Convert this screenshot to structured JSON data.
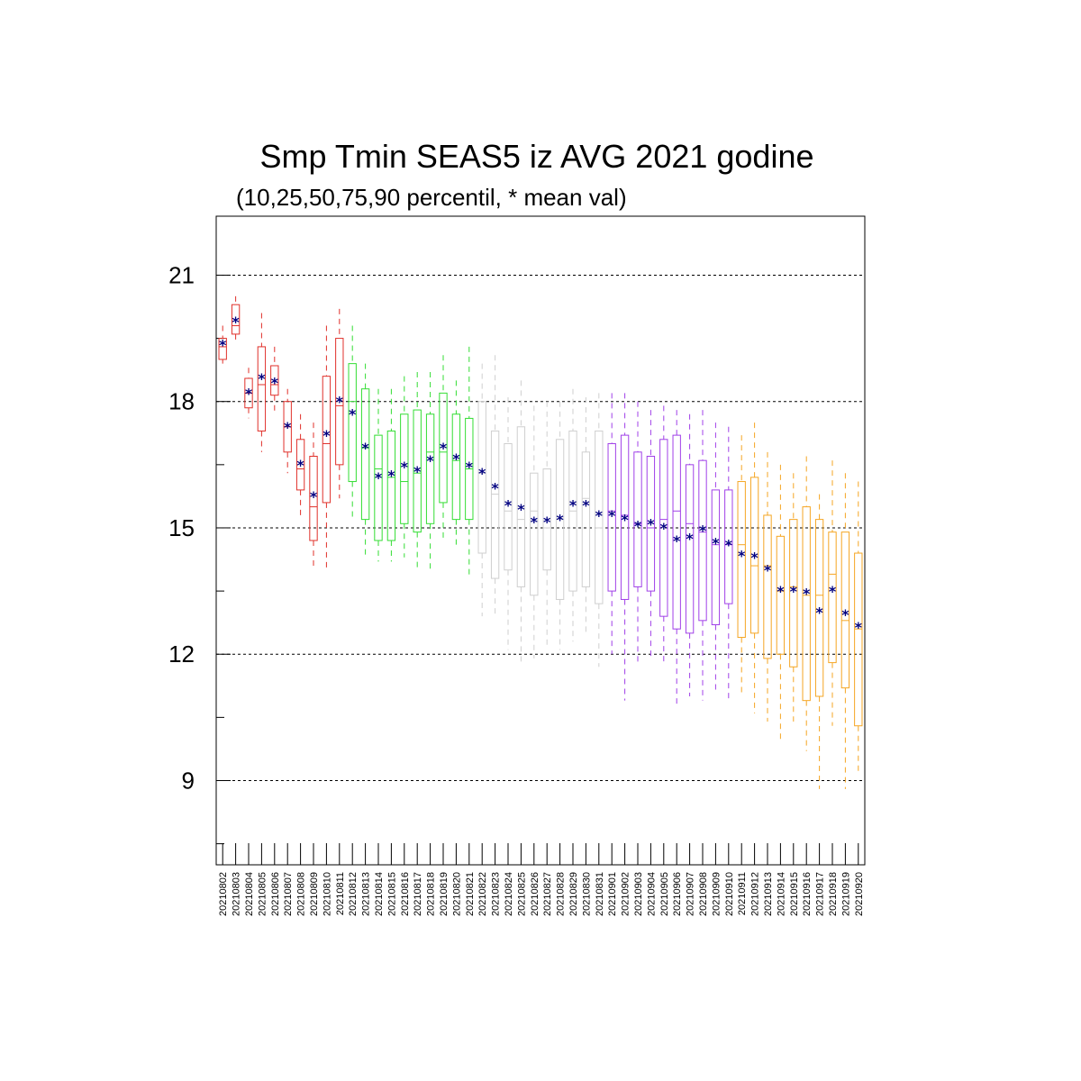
{
  "chart_data": {
    "type": "box",
    "title": "Smp Tmin SEAS5 iz AVG 2021 godine",
    "subtitle": "(10,25,50,75,90 percentil, * mean val)",
    "ylim": [
      7.0,
      22.4
    ],
    "yticks": [
      9,
      12,
      15,
      18,
      21
    ],
    "grid": true,
    "mean_marker": "*",
    "mean_color": "#000080",
    "colors": {
      "red": "#e0302a",
      "green": "#33dd33",
      "grey": "#cfcfcf",
      "purple": "#a040e8",
      "orange": "#f5a623"
    },
    "categories": [
      "20210802",
      "20210803",
      "20210804",
      "20210805",
      "20210806",
      "20210807",
      "20210808",
      "20210809",
      "20210810",
      "20210811",
      "20210812",
      "20210813",
      "20210814",
      "20210815",
      "20210816",
      "20210817",
      "20210818",
      "20210819",
      "20210820",
      "20210821",
      "20210822",
      "20210823",
      "20210824",
      "20210825",
      "20210826",
      "20210827",
      "20210828",
      "20210829",
      "20210830",
      "20210831",
      "20210901",
      "20210902",
      "20210903",
      "20210904",
      "20210905",
      "20210906",
      "20210907",
      "20210908",
      "20210909",
      "20210910",
      "20210911",
      "20210912",
      "20210913",
      "20210914",
      "20210915",
      "20210916",
      "20210917",
      "20210918",
      "20210919",
      "20210920"
    ],
    "boxes": [
      {
        "p10": 18.9,
        "p25": 19.0,
        "p50": 19.3,
        "p75": 19.5,
        "p90": 19.8,
        "mean": 19.35,
        "color": "red"
      },
      {
        "p10": 19.4,
        "p25": 19.6,
        "p50": 19.8,
        "p75": 20.3,
        "p90": 20.5,
        "mean": 19.9,
        "color": "red"
      },
      {
        "p10": 17.6,
        "p25": 17.85,
        "p50": 18.2,
        "p75": 18.55,
        "p90": 18.8,
        "mean": 18.2,
        "color": "red"
      },
      {
        "p10": 16.8,
        "p25": 17.3,
        "p50": 18.4,
        "p75": 19.3,
        "p90": 20.1,
        "mean": 18.55,
        "color": "red"
      },
      {
        "p10": 17.7,
        "p25": 18.15,
        "p50": 18.4,
        "p75": 18.85,
        "p90": 19.3,
        "mean": 18.45,
        "color": "red"
      },
      {
        "p10": 16.3,
        "p25": 16.8,
        "p50": 17.4,
        "p75": 18.0,
        "p90": 18.3,
        "mean": 17.4,
        "color": "red"
      },
      {
        "p10": 15.2,
        "p25": 15.9,
        "p50": 16.4,
        "p75": 17.1,
        "p90": 17.7,
        "mean": 16.5,
        "color": "red"
      },
      {
        "p10": 14.1,
        "p25": 14.7,
        "p50": 15.5,
        "p75": 16.7,
        "p90": 17.5,
        "mean": 15.75,
        "color": "red"
      },
      {
        "p10": 14.0,
        "p25": 15.6,
        "p50": 17.0,
        "p75": 18.6,
        "p90": 19.8,
        "mean": 17.2,
        "color": "red"
      },
      {
        "p10": 15.7,
        "p25": 16.5,
        "p50": 17.9,
        "p75": 19.5,
        "p90": 20.2,
        "mean": 18.0,
        "color": "red"
      },
      {
        "p10": 15.2,
        "p25": 16.1,
        "p50": 18.0,
        "p75": 18.9,
        "p90": 19.8,
        "mean": 17.7,
        "color": "green"
      },
      {
        "p10": 14.3,
        "p25": 15.2,
        "p50": 16.9,
        "p75": 18.3,
        "p90": 18.9,
        "mean": 16.9,
        "color": "green"
      },
      {
        "p10": 14.2,
        "p25": 14.7,
        "p50": 16.4,
        "p75": 17.2,
        "p90": 18.3,
        "mean": 16.2,
        "color": "green"
      },
      {
        "p10": 14.2,
        "p25": 14.7,
        "p50": 16.2,
        "p75": 17.3,
        "p90": 18.3,
        "mean": 16.25,
        "color": "green"
      },
      {
        "p10": 14.3,
        "p25": 15.1,
        "p50": 16.1,
        "p75": 17.7,
        "p90": 18.6,
        "mean": 16.45,
        "color": "green"
      },
      {
        "p10": 14.0,
        "p25": 14.9,
        "p50": 16.3,
        "p75": 17.8,
        "p90": 18.7,
        "mean": 16.35,
        "color": "green"
      },
      {
        "p10": 14.0,
        "p25": 15.1,
        "p50": 16.8,
        "p75": 17.7,
        "p90": 18.7,
        "mean": 16.6,
        "color": "green"
      },
      {
        "p10": 14.7,
        "p25": 15.6,
        "p50": 16.8,
        "p75": 18.2,
        "p90": 19.1,
        "mean": 16.9,
        "color": "green"
      },
      {
        "p10": 14.5,
        "p25": 15.2,
        "p50": 16.6,
        "p75": 17.7,
        "p90": 18.5,
        "mean": 16.65,
        "color": "green"
      },
      {
        "p10": 13.8,
        "p25": 15.2,
        "p50": 16.4,
        "p75": 17.6,
        "p90": 19.3,
        "mean": 16.45,
        "color": "green"
      },
      {
        "p10": 12.9,
        "p25": 14.4,
        "p50": 16.3,
        "p75": 18.0,
        "p90": 18.9,
        "mean": 16.3,
        "color": "grey"
      },
      {
        "p10": 12.9,
        "p25": 13.8,
        "p50": 15.8,
        "p75": 17.3,
        "p90": 19.1,
        "mean": 15.95,
        "color": "grey"
      },
      {
        "p10": 12.1,
        "p25": 14.0,
        "p50": 15.4,
        "p75": 17.0,
        "p90": 18.1,
        "mean": 15.55,
        "color": "grey"
      },
      {
        "p10": 11.8,
        "p25": 13.6,
        "p50": 15.2,
        "p75": 17.4,
        "p90": 18.5,
        "mean": 15.45,
        "color": "grey"
      },
      {
        "p10": 11.9,
        "p25": 13.4,
        "p50": 15.4,
        "p75": 16.3,
        "p90": 17.9,
        "mean": 15.15,
        "color": "grey"
      },
      {
        "p10": 12.2,
        "p25": 14.0,
        "p50": 15.0,
        "p75": 16.4,
        "p90": 18.0,
        "mean": 15.15,
        "color": "grey"
      },
      {
        "p10": 12.1,
        "p25": 13.3,
        "p50": 15.2,
        "p75": 17.1,
        "p90": 18.0,
        "mean": 15.2,
        "color": "grey"
      },
      {
        "p10": 12.3,
        "p25": 13.5,
        "p50": 15.4,
        "p75": 17.3,
        "p90": 18.3,
        "mean": 15.55,
        "color": "grey"
      },
      {
        "p10": 12.5,
        "p25": 13.6,
        "p50": 15.7,
        "p75": 16.8,
        "p90": 18.1,
        "mean": 15.55,
        "color": "grey"
      },
      {
        "p10": 11.7,
        "p25": 13.2,
        "p50": 15.0,
        "p75": 17.3,
        "p90": 18.2,
        "mean": 15.3,
        "color": "grey"
      },
      {
        "p10": 12.0,
        "p25": 13.5,
        "p50": 15.4,
        "p75": 17.0,
        "p90": 18.2,
        "mean": 15.3,
        "color": "purple"
      },
      {
        "p10": 10.9,
        "p25": 13.3,
        "p50": 15.3,
        "p75": 17.2,
        "p90": 18.2,
        "mean": 15.2,
        "color": "purple"
      },
      {
        "p10": 11.8,
        "p25": 13.6,
        "p50": 15.1,
        "p75": 16.8,
        "p90": 18.0,
        "mean": 15.05,
        "color": "purple"
      },
      {
        "p10": 11.9,
        "p25": 13.5,
        "p50": 15.0,
        "p75": 16.7,
        "p90": 17.8,
        "mean": 15.1,
        "color": "purple"
      },
      {
        "p10": 11.8,
        "p25": 12.9,
        "p50": 15.2,
        "p75": 17.1,
        "p90": 17.9,
        "mean": 15.0,
        "color": "purple"
      },
      {
        "p10": 10.8,
        "p25": 12.6,
        "p50": 15.4,
        "p75": 17.2,
        "p90": 17.8,
        "mean": 14.7,
        "color": "purple"
      },
      {
        "p10": 11.0,
        "p25": 12.5,
        "p50": 15.1,
        "p75": 16.5,
        "p90": 17.7,
        "mean": 14.75,
        "color": "purple"
      },
      {
        "p10": 10.9,
        "p25": 12.8,
        "p50": 14.9,
        "p75": 16.6,
        "p90": 17.8,
        "mean": 14.95,
        "color": "purple"
      },
      {
        "p10": 11.1,
        "p25": 12.7,
        "p50": 14.6,
        "p75": 15.9,
        "p90": 17.5,
        "mean": 14.65,
        "color": "purple"
      },
      {
        "p10": 10.9,
        "p25": 13.2,
        "p50": 14.6,
        "p75": 15.9,
        "p90": 17.4,
        "mean": 14.6,
        "color": "purple"
      },
      {
        "p10": 11.0,
        "p25": 12.4,
        "p50": 14.6,
        "p75": 16.1,
        "p90": 17.2,
        "mean": 14.35,
        "color": "orange"
      },
      {
        "p10": 10.6,
        "p25": 12.5,
        "p50": 14.1,
        "p75": 16.2,
        "p90": 17.5,
        "mean": 14.3,
        "color": "orange"
      },
      {
        "p10": 10.4,
        "p25": 11.9,
        "p50": 14.1,
        "p75": 15.3,
        "p90": 16.8,
        "mean": 14.0,
        "color": "orange"
      },
      {
        "p10": 9.9,
        "p25": 12.0,
        "p50": 13.5,
        "p75": 14.8,
        "p90": 16.5,
        "mean": 13.5,
        "color": "orange"
      },
      {
        "p10": 10.4,
        "p25": 11.7,
        "p50": 13.6,
        "p75": 15.2,
        "p90": 16.3,
        "mean": 13.5,
        "color": "orange"
      },
      {
        "p10": 9.7,
        "p25": 10.9,
        "p50": 13.4,
        "p75": 15.5,
        "p90": 16.7,
        "mean": 13.45,
        "color": "orange"
      },
      {
        "p10": 8.8,
        "p25": 11.0,
        "p50": 13.4,
        "p75": 15.2,
        "p90": 15.8,
        "mean": 13.0,
        "color": "orange"
      },
      {
        "p10": 10.3,
        "p25": 11.8,
        "p50": 13.9,
        "p75": 14.9,
        "p90": 16.6,
        "mean": 13.5,
        "color": "orange"
      },
      {
        "p10": 8.8,
        "p25": 11.2,
        "p50": 12.8,
        "p75": 14.9,
        "p90": 16.3,
        "mean": 12.95,
        "color": "orange"
      },
      {
        "p10": 9.2,
        "p25": 10.3,
        "p50": 12.6,
        "p75": 14.4,
        "p90": 16.1,
        "mean": 12.65,
        "color": "orange"
      }
    ]
  }
}
